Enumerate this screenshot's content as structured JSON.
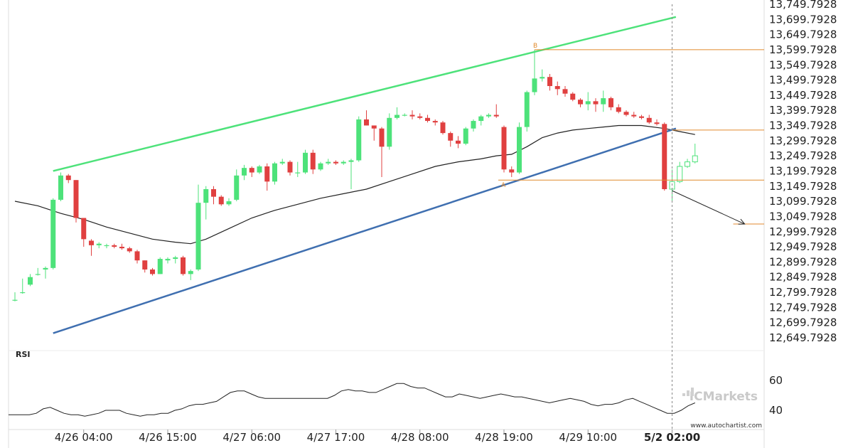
{
  "chart_data": {
    "type": "candlestick",
    "y_ticks": [
      "13,749.7928",
      "13,699.7928",
      "13,649.7928",
      "13,599.7928",
      "13,549.7928",
      "13,499.7928",
      "13,449.7928",
      "13,399.7928",
      "13,349.7928",
      "13,299.7928",
      "13,249.7928",
      "13,199.7928",
      "13,149.7928",
      "13,099.7928",
      "13,049.7928",
      "12,999.7928",
      "12,949.7928",
      "12,899.7928",
      "12,849.7928",
      "12,799.7928",
      "12,749.7928",
      "12,699.7928",
      "12,649.7928"
    ],
    "y_tick_values": [
      13749.7928,
      13699.7928,
      13649.7928,
      13599.7928,
      13549.7928,
      13499.7928,
      13449.7928,
      13399.7928,
      13349.7928,
      13299.7928,
      13249.7928,
      13199.7928,
      13149.7928,
      13099.7928,
      13049.7928,
      12999.7928,
      12949.7928,
      12899.7928,
      12849.7928,
      12799.7928,
      12749.7928,
      12699.7928,
      12649.7928
    ],
    "ylim": [
      12630,
      13765
    ],
    "x_ticks": [
      {
        "label": "4/26 04:00",
        "bar": 9,
        "bold": false
      },
      {
        "label": "4/26 15:00",
        "bar": 20,
        "bold": false
      },
      {
        "label": "4/27 06:00",
        "bar": 31,
        "bold": false
      },
      {
        "label": "4/27 17:00",
        "bar": 42,
        "bold": false
      },
      {
        "label": "4/28 08:00",
        "bar": 53,
        "bold": false
      },
      {
        "label": "4/28 19:00",
        "bar": 64,
        "bold": false
      },
      {
        "label": "4/29 10:00",
        "bar": 75,
        "bold": false
      },
      {
        "label": "5/2 02:00",
        "bar": 86,
        "bold": true
      }
    ],
    "candles": [
      [
        12775,
        12800,
        12770,
        12775
      ],
      [
        12800,
        12845,
        12795,
        12800
      ],
      [
        12825,
        12860,
        12820,
        12850
      ],
      [
        12860,
        12880,
        12855,
        12860
      ],
      [
        12875,
        12885,
        12845,
        12880
      ],
      [
        12880,
        13110,
        12875,
        13105
      ],
      [
        13105,
        13195,
        13100,
        13185
      ],
      [
        13185,
        13190,
        13160,
        13170
      ],
      [
        13170,
        13170,
        13030,
        13045
      ],
      [
        13045,
        13045,
        12950,
        12975
      ],
      [
        12970,
        12975,
        12920,
        12955
      ],
      [
        12955,
        12965,
        12945,
        12960
      ],
      [
        12955,
        12960,
        12945,
        12955
      ],
      [
        12955,
        12960,
        12945,
        12950
      ],
      [
        12950,
        12960,
        12940,
        12945
      ],
      [
        12945,
        12950,
        12930,
        12935
      ],
      [
        12935,
        12940,
        12895,
        12905
      ],
      [
        12905,
        12905,
        12865,
        12875
      ],
      [
        12875,
        12880,
        12855,
        12860
      ],
      [
        12860,
        12915,
        12860,
        12910
      ],
      [
        12905,
        12915,
        12895,
        12910
      ],
      [
        12910,
        12920,
        12895,
        12915
      ],
      [
        12915,
        12920,
        12855,
        12860
      ],
      [
        12860,
        12875,
        12840,
        12870
      ],
      [
        12875,
        13155,
        12870,
        13095
      ],
      [
        13095,
        13150,
        13040,
        13140
      ],
      [
        13140,
        13150,
        13090,
        13115
      ],
      [
        13115,
        13120,
        13085,
        13090
      ],
      [
        13090,
        13110,
        13085,
        13100
      ],
      [
        13105,
        13205,
        13100,
        13185
      ],
      [
        13185,
        13220,
        13170,
        13210
      ],
      [
        13210,
        13215,
        13180,
        13195
      ],
      [
        13195,
        13220,
        13190,
        13215
      ],
      [
        13215,
        13225,
        13135,
        13165
      ],
      [
        13165,
        13230,
        13155,
        13225
      ],
      [
        13225,
        13240,
        13220,
        13230
      ],
      [
        13230,
        13235,
        13185,
        13195
      ],
      [
        13195,
        13230,
        13180,
        13195
      ],
      [
        13195,
        13270,
        13190,
        13260
      ],
      [
        13260,
        13270,
        13190,
        13205
      ],
      [
        13205,
        13230,
        13200,
        13225
      ],
      [
        13225,
        13240,
        13220,
        13230
      ],
      [
        13230,
        13235,
        13220,
        13225
      ],
      [
        13225,
        13235,
        13220,
        13230
      ],
      [
        13230,
        13240,
        13140,
        13235
      ],
      [
        13235,
        13380,
        13230,
        13370
      ],
      [
        13370,
        13400,
        13350,
        13350
      ],
      [
        13350,
        13350,
        13300,
        13340
      ],
      [
        13340,
        13345,
        13180,
        13280
      ],
      [
        13280,
        13390,
        13270,
        13375
      ],
      [
        13375,
        13410,
        13370,
        13385
      ],
      [
        13385,
        13390,
        13380,
        13385
      ],
      [
        13385,
        13400,
        13370,
        13380
      ],
      [
        13380,
        13390,
        13370,
        13375
      ],
      [
        13375,
        13385,
        13360,
        13365
      ],
      [
        13365,
        13370,
        13350,
        13360
      ],
      [
        13360,
        13365,
        13320,
        13325
      ],
      [
        13325,
        13330,
        13280,
        13300
      ],
      [
        13300,
        13315,
        13275,
        13290
      ],
      [
        13290,
        13345,
        13285,
        13340
      ],
      [
        13340,
        13370,
        13330,
        13365
      ],
      [
        13365,
        13385,
        13350,
        13380
      ],
      [
        13380,
        13390,
        13375,
        13385
      ],
      [
        13385,
        13420,
        13375,
        13380
      ],
      [
        13345,
        13350,
        13195,
        13205
      ],
      [
        13205,
        13215,
        13180,
        13195
      ],
      [
        13195,
        13360,
        13190,
        13345
      ],
      [
        13345,
        13465,
        13330,
        13460
      ],
      [
        13460,
        13600,
        13450,
        13505
      ],
      [
        13505,
        13535,
        13495,
        13510
      ],
      [
        13510,
        13520,
        13465,
        13480
      ],
      [
        13480,
        13495,
        13450,
        13470
      ],
      [
        13470,
        13480,
        13445,
        13455
      ],
      [
        13455,
        13460,
        13430,
        13435
      ],
      [
        13435,
        13440,
        13410,
        13420
      ],
      [
        13420,
        13460,
        13400,
        13430
      ],
      [
        13430,
        13440,
        13395,
        13420
      ],
      [
        13420,
        13465,
        13395,
        13440
      ],
      [
        13440,
        13445,
        13400,
        13410
      ],
      [
        13410,
        13420,
        13390,
        13395
      ],
      [
        13395,
        13400,
        13380,
        13385
      ],
      [
        13385,
        13395,
        13375,
        13380
      ],
      [
        13380,
        13385,
        13370,
        13375
      ],
      [
        13375,
        13385,
        13355,
        13360
      ],
      [
        13360,
        13370,
        13350,
        13355
      ],
      [
        13355,
        13360,
        13135,
        13140
      ],
      [
        13140,
        13205,
        13100,
        13165
      ],
      [
        13165,
        13230,
        13160,
        13215
      ],
      [
        13215,
        13240,
        13210,
        13230
      ],
      [
        13230,
        13290,
        13225,
        13250
      ]
    ],
    "ma_line": [
      [
        0,
        13100
      ],
      [
        3,
        13085
      ],
      [
        6,
        13060
      ],
      [
        9,
        13040
      ],
      [
        12,
        13015
      ],
      [
        15,
        12995
      ],
      [
        18,
        12975
      ],
      [
        21,
        12965
      ],
      [
        23,
        12960
      ],
      [
        25,
        12975
      ],
      [
        28,
        13010
      ],
      [
        31,
        13045
      ],
      [
        34,
        13070
      ],
      [
        37,
        13090
      ],
      [
        40,
        13110
      ],
      [
        43,
        13125
      ],
      [
        46,
        13140
      ],
      [
        49,
        13165
      ],
      [
        52,
        13190
      ],
      [
        55,
        13215
      ],
      [
        58,
        13230
      ],
      [
        61,
        13240
      ],
      [
        63,
        13250
      ],
      [
        65,
        13255
      ],
      [
        67,
        13280
      ],
      [
        69,
        13310
      ],
      [
        71,
        13325
      ],
      [
        73,
        13335
      ],
      [
        75,
        13340
      ],
      [
        77,
        13345
      ],
      [
        79,
        13350
      ],
      [
        82,
        13350
      ],
      [
        85,
        13340
      ],
      [
        87,
        13330
      ],
      [
        89,
        13320
      ]
    ],
    "upper_channel": {
      "x": [
        5,
        86.5
      ],
      "y": [
        13200,
        13708
      ]
    },
    "lower_channel": {
      "x": [
        5,
        86.5
      ],
      "y": [
        12665,
        13340
      ]
    },
    "level_B": {
      "bar": 68,
      "y": 13600,
      "label": "B"
    },
    "level_mid": 13335,
    "level_A": {
      "bar": 64,
      "y": 13170,
      "label": "A"
    },
    "target_level": 13025,
    "arrow": {
      "x": [
        86,
        95.5
      ],
      "y": [
        13135,
        13025
      ]
    },
    "cursor_bar": 86,
    "rsi": {
      "label": "RSI",
      "ticks": [
        60,
        40
      ],
      "ylim": [
        29,
        72
      ],
      "values": [
        37,
        37,
        37,
        37,
        38,
        41,
        42,
        40,
        38,
        37,
        37,
        36,
        37,
        38,
        40,
        40,
        40,
        38,
        37,
        36,
        37,
        37,
        38,
        38,
        40,
        41,
        43,
        44,
        44,
        45,
        46,
        49,
        52,
        53,
        53,
        51,
        49,
        48,
        48,
        48,
        48,
        48,
        48,
        48,
        48,
        48,
        48,
        50,
        53,
        54,
        53,
        53,
        52,
        52,
        54,
        56,
        58,
        58,
        56,
        55,
        55,
        53,
        51,
        49,
        49,
        51,
        50,
        49,
        48,
        49,
        50,
        51,
        50,
        49,
        49,
        48,
        47,
        46,
        45,
        46,
        47,
        48,
        47,
        46,
        44,
        43,
        44,
        44,
        45,
        47,
        48,
        46,
        44,
        42,
        40,
        38,
        38,
        40,
        43,
        45
      ]
    },
    "watermark": "ICMarkets",
    "footer_text": "www.autochartist.com"
  }
}
